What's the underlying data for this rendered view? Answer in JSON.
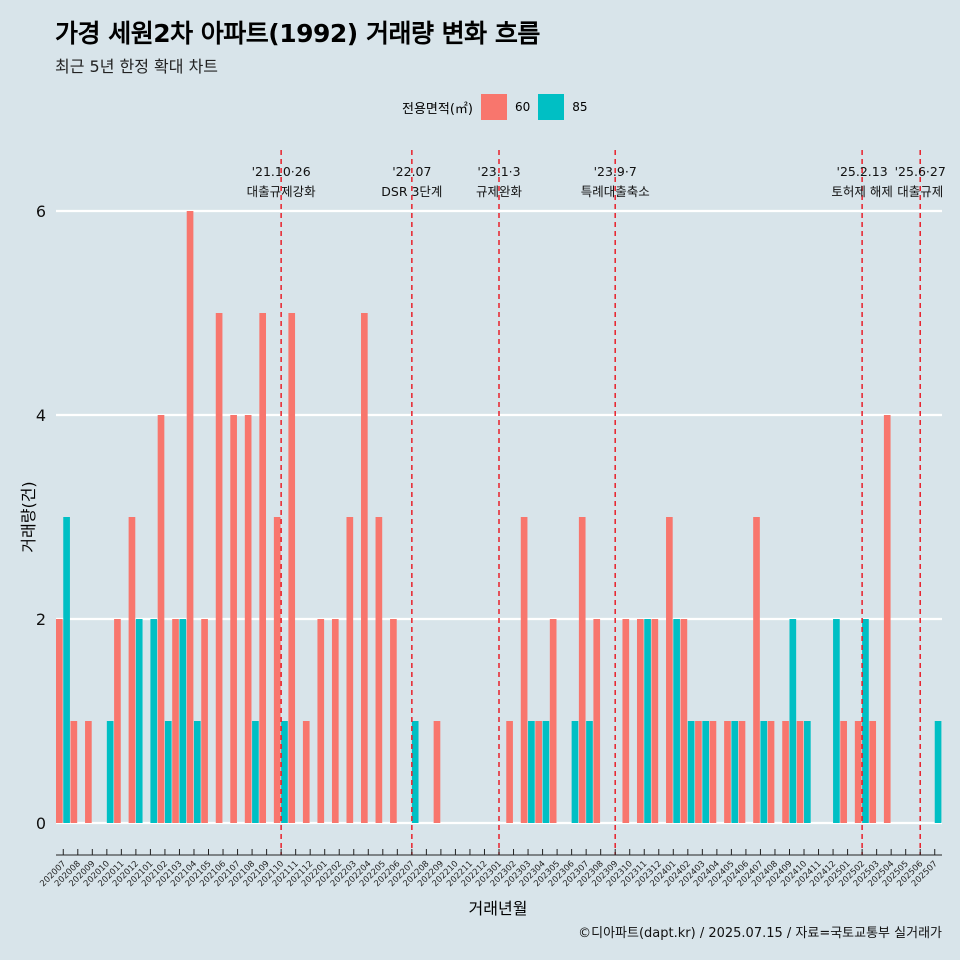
{
  "title": "가경 세원2차 아파트(1992) 거래량 변화 흐름",
  "subtitle": "최근 5년 한정 확대 차트",
  "legend": {
    "title": "전용면적(㎡)",
    "items": [
      {
        "label": "60",
        "color": "#f8766d"
      },
      {
        "label": "85",
        "color": "#00bfc4"
      }
    ]
  },
  "caption": "©디아파트(dapt.kr) / 2025.07.15 / 자료=국토교통부 실거래가",
  "chart_data": {
    "type": "bar",
    "title": "가경 세원2차 아파트(1992) 거래량 변화 흐름",
    "xlabel": "거래년월",
    "ylabel": "거래량(건)",
    "ylim": [
      0,
      6
    ],
    "yticks": [
      0,
      2,
      4,
      6
    ],
    "categories": [
      "202007",
      "202008",
      "202009",
      "202010",
      "202011",
      "202012",
      "202101",
      "202102",
      "202103",
      "202104",
      "202105",
      "202106",
      "202107",
      "202108",
      "202109",
      "202110",
      "202111",
      "202112",
      "202201",
      "202202",
      "202203",
      "202204",
      "202205",
      "202206",
      "202207",
      "202208",
      "202209",
      "202210",
      "202211",
      "202212",
      "202301",
      "202302",
      "202303",
      "202304",
      "202305",
      "202306",
      "202307",
      "202308",
      "202309",
      "202310",
      "202311",
      "202312",
      "202401",
      "202402",
      "202403",
      "202404",
      "202405",
      "202406",
      "202407",
      "202408",
      "202409",
      "202410",
      "202411",
      "202412",
      "202501",
      "202502",
      "202503",
      "202504",
      "202505",
      "202506",
      "202507"
    ],
    "series": [
      {
        "name": "60",
        "color": "#f8766d",
        "values": [
          2,
          1,
          1,
          0,
          2,
          3,
          0,
          4,
          2,
          6,
          2,
          5,
          4,
          4,
          5,
          3,
          5,
          1,
          2,
          2,
          3,
          5,
          3,
          2,
          0,
          0,
          1,
          0,
          0,
          0,
          0,
          1,
          3,
          1,
          2,
          0,
          3,
          2,
          0,
          2,
          2,
          2,
          3,
          2,
          1,
          1,
          1,
          1,
          3,
          1,
          1,
          1,
          0,
          0,
          1,
          1,
          1,
          4,
          0,
          0,
          0
        ]
      },
      {
        "name": "85",
        "color": "#00bfc4",
        "values": [
          3,
          0,
          0,
          1,
          0,
          2,
          2,
          1,
          2,
          1,
          0,
          0,
          0,
          1,
          0,
          1,
          0,
          0,
          0,
          0,
          0,
          0,
          0,
          0,
          1,
          0,
          0,
          0,
          0,
          0,
          0,
          0,
          1,
          1,
          0,
          1,
          1,
          0,
          0,
          0,
          2,
          0,
          2,
          1,
          1,
          0,
          1,
          0,
          1,
          0,
          2,
          1,
          0,
          2,
          0,
          2,
          0,
          0,
          0,
          0,
          1
        ]
      }
    ],
    "annotations": [
      {
        "date": "'21.10·26",
        "label": "대출규제강화",
        "after": "202110"
      },
      {
        "date": "'22.07",
        "label": "DSR 3단계",
        "after": "202207"
      },
      {
        "date": "'23.1·3",
        "label": "규제완화",
        "after": "202301"
      },
      {
        "date": "'23.9·7",
        "label": "특례대출축소",
        "after": "202309"
      },
      {
        "date": "'25.2.13",
        "label": "토허제 해제",
        "after": "202502"
      },
      {
        "date": "'25.6·27",
        "label": "대출규제",
        "after": "202506"
      }
    ]
  }
}
